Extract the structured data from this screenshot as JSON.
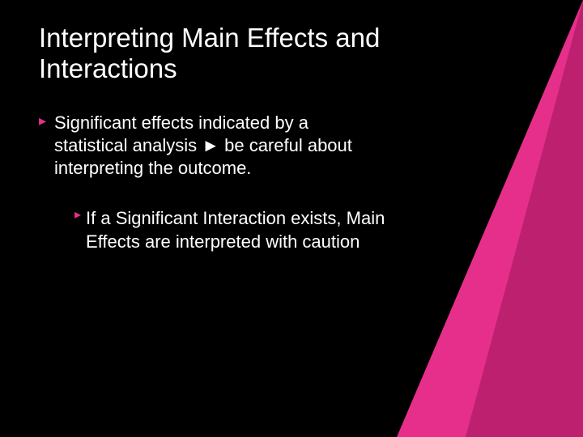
{
  "slide": {
    "background_color": "#000000",
    "accent_primary": "#e62f8b",
    "accent_secondary": "#9a145a",
    "title": "Interpreting Main Effects and Interactions",
    "title_color": "#ffffff",
    "title_fontsize": 33,
    "body_color": "#ffffff",
    "body_fontsize": 22,
    "bullet_marker": "▸",
    "bullets": [
      {
        "level": 1,
        "text": "Significant effects indicated by a statistical analysis ► be careful about interpreting the outcome."
      },
      {
        "level": 2,
        "text": "If a Significant Interaction exists, Main Effects are interpreted with caution"
      }
    ]
  }
}
